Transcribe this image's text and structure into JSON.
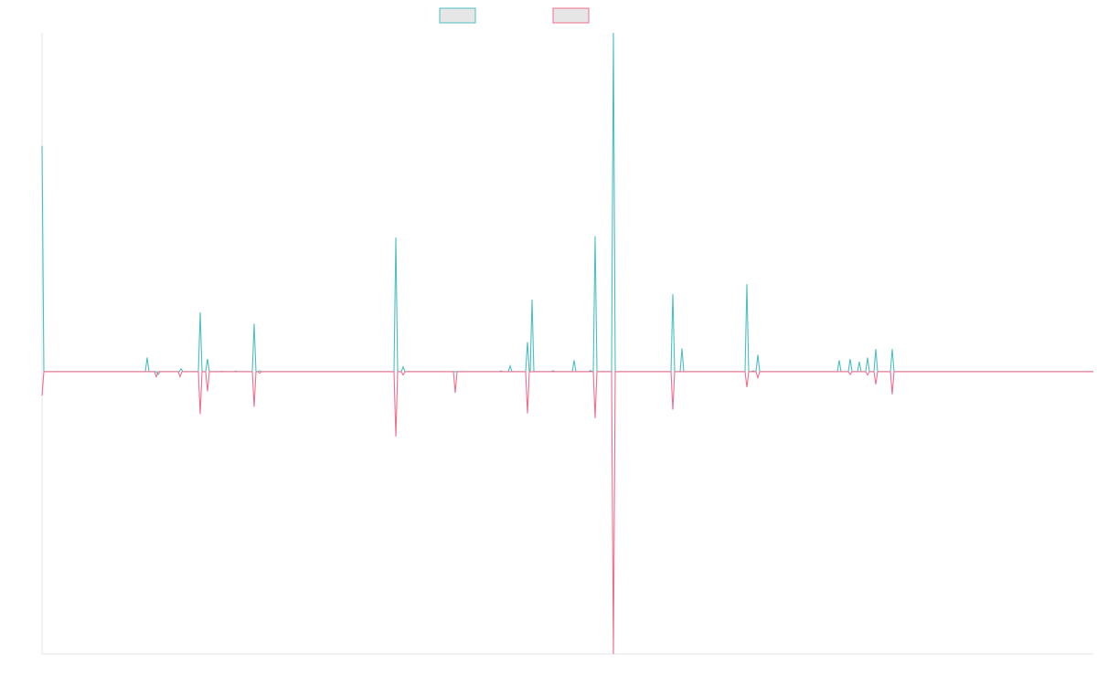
{
  "chart_data": {
    "type": "line",
    "title": "",
    "xlabel": "",
    "ylabel": "",
    "grid": false,
    "legend_position": "top-center",
    "x_range": [
      0,
      1150
    ],
    "ylim": [
      -1.0,
      1.2
    ],
    "series": [
      {
        "color": "#4bbfc1",
        "points": [
          [
            0,
            0.8
          ],
          [
            2,
            0
          ],
          [
            113,
            0
          ],
          [
            115,
            0.05
          ],
          [
            117,
            0
          ],
          [
            125,
            0
          ],
          [
            127,
            -0.01
          ],
          [
            129,
            0
          ],
          [
            150,
            0
          ],
          [
            152,
            0.01
          ],
          [
            154,
            0
          ],
          [
            171,
            0
          ],
          [
            173,
            0.21
          ],
          [
            175,
            0
          ],
          [
            179,
            0
          ],
          [
            181,
            0.045
          ],
          [
            183,
            0
          ],
          [
            195,
            0
          ],
          [
            197,
            0.001
          ],
          [
            199,
            0
          ],
          [
            210,
            0
          ],
          [
            212,
            0.002
          ],
          [
            214,
            0
          ],
          [
            230,
            0
          ],
          [
            232,
            0.17
          ],
          [
            234,
            0
          ],
          [
            236,
            0
          ],
          [
            238,
            0.003
          ],
          [
            240,
            0
          ],
          [
            385,
            0
          ],
          [
            387,
            0.475
          ],
          [
            389,
            0
          ],
          [
            393,
            0
          ],
          [
            395,
            0.017
          ],
          [
            397,
            0
          ],
          [
            500,
            0
          ],
          [
            502,
            0.002
          ],
          [
            504,
            0
          ],
          [
            510,
            0
          ],
          [
            512,
            0.02
          ],
          [
            514,
            0
          ],
          [
            529,
            0
          ],
          [
            531,
            0.105
          ],
          [
            533,
            0
          ],
          [
            534,
            0
          ],
          [
            536,
            0.255
          ],
          [
            538,
            0
          ],
          [
            557,
            0
          ],
          [
            559,
            0.003
          ],
          [
            561,
            0
          ],
          [
            580,
            0
          ],
          [
            582,
            0.04
          ],
          [
            584,
            0
          ],
          [
            598,
            0
          ],
          [
            600,
            0.004
          ],
          [
            602,
            0
          ],
          [
            603,
            0
          ],
          [
            605,
            0.48
          ],
          [
            607,
            0
          ],
          [
            623,
            0
          ],
          [
            625,
            1.2
          ],
          [
            627,
            0
          ],
          [
            688,
            0
          ],
          [
            690,
            0.275
          ],
          [
            692,
            0
          ],
          [
            698,
            0
          ],
          [
            700,
            0.082
          ],
          [
            702,
            0
          ],
          [
            769,
            0
          ],
          [
            771,
            0.31
          ],
          [
            773,
            0
          ],
          [
            776,
            0
          ],
          [
            778,
            0.003
          ],
          [
            780,
            0
          ],
          [
            781,
            0
          ],
          [
            783,
            0.06
          ],
          [
            785,
            0
          ],
          [
            870,
            0
          ],
          [
            872,
            0.04
          ],
          [
            874,
            0
          ],
          [
            882,
            0
          ],
          [
            884,
            0.045
          ],
          [
            886,
            0
          ],
          [
            892,
            0
          ],
          [
            894,
            0.035
          ],
          [
            896,
            0
          ],
          [
            901,
            0
          ],
          [
            903,
            0.05
          ],
          [
            905,
            0
          ],
          [
            910,
            0
          ],
          [
            912,
            0.08
          ],
          [
            914,
            0
          ],
          [
            928,
            0
          ],
          [
            930,
            0.08
          ],
          [
            932,
            0
          ],
          [
            1150,
            0
          ]
        ]
      },
      {
        "color": "#f06e8e",
        "points": [
          [
            0,
            -0.085
          ],
          [
            2,
            0
          ],
          [
            123,
            0
          ],
          [
            125,
            -0.018
          ],
          [
            127,
            0
          ],
          [
            149,
            0
          ],
          [
            151,
            -0.018
          ],
          [
            153,
            0
          ],
          [
            171,
            0
          ],
          [
            173,
            -0.15
          ],
          [
            175,
            0
          ],
          [
            179,
            0
          ],
          [
            181,
            -0.07
          ],
          [
            183,
            0
          ],
          [
            230,
            0
          ],
          [
            232,
            -0.125
          ],
          [
            234,
            0
          ],
          [
            236,
            0
          ],
          [
            238,
            -0.005
          ],
          [
            240,
            0
          ],
          [
            385,
            0
          ],
          [
            387,
            -0.23
          ],
          [
            389,
            0
          ],
          [
            393,
            0
          ],
          [
            395,
            -0.012
          ],
          [
            397,
            0
          ],
          [
            450,
            0
          ],
          [
            452,
            -0.075
          ],
          [
            454,
            0
          ],
          [
            529,
            0
          ],
          [
            531,
            -0.148
          ],
          [
            533,
            0
          ],
          [
            603,
            0
          ],
          [
            605,
            -0.165
          ],
          [
            607,
            0
          ],
          [
            623,
            0
          ],
          [
            625,
            -1.0
          ],
          [
            627,
            0
          ],
          [
            688,
            0
          ],
          [
            690,
            -0.135
          ],
          [
            692,
            0
          ],
          [
            769,
            0
          ],
          [
            771,
            -0.055
          ],
          [
            773,
            0
          ],
          [
            781,
            0
          ],
          [
            783,
            -0.022
          ],
          [
            785,
            0
          ],
          [
            882,
            0
          ],
          [
            884,
            -0.01
          ],
          [
            886,
            0
          ],
          [
            901,
            0
          ],
          [
            903,
            -0.012
          ],
          [
            905,
            0
          ],
          [
            910,
            0
          ],
          [
            912,
            -0.045
          ],
          [
            914,
            0
          ],
          [
            928,
            0
          ],
          [
            930,
            -0.08
          ],
          [
            932,
            0
          ],
          [
            1150,
            0
          ]
        ]
      }
    ]
  }
}
